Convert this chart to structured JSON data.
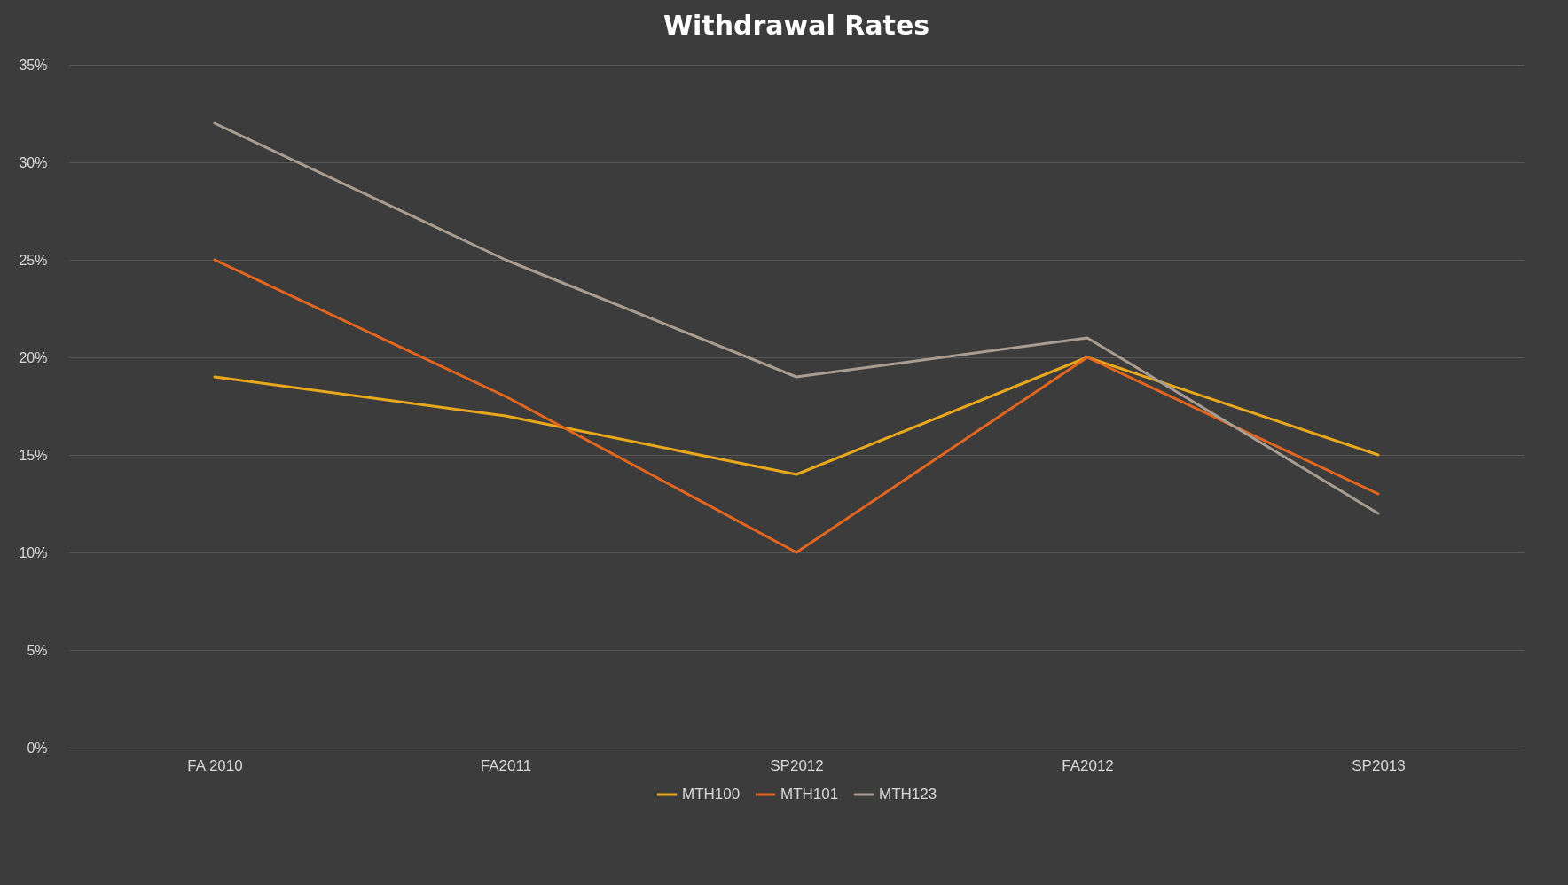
{
  "chart_data": {
    "type": "line",
    "title": "Withdrawal Rates",
    "categories": [
      "FA 2010",
      "FA2011",
      "SP2012",
      "FA2012",
      "SP2013"
    ],
    "series": [
      {
        "name": "MTH100",
        "color": "#e9a81c",
        "values": [
          19,
          17,
          14,
          20,
          15
        ]
      },
      {
        "name": "MTH101",
        "color": "#e2661f",
        "values": [
          25,
          18,
          10,
          20,
          13
        ]
      },
      {
        "name": "MTH123",
        "color": "#a99c91",
        "values": [
          32,
          25,
          19,
          21,
          12
        ]
      }
    ],
    "ylim": [
      0,
      35
    ],
    "yticks": [
      {
        "value": 0,
        "label": "0%"
      },
      {
        "value": 5,
        "label": "5%"
      },
      {
        "value": 10,
        "label": "10%"
      },
      {
        "value": 15,
        "label": "15%"
      },
      {
        "value": 20,
        "label": "20%"
      },
      {
        "value": 25,
        "label": "25%"
      },
      {
        "value": 30,
        "label": "30%"
      },
      {
        "value": 35,
        "label": "35%"
      }
    ],
    "grid": "y",
    "legend": "bottom",
    "marker": "none",
    "line_style": "solid"
  }
}
